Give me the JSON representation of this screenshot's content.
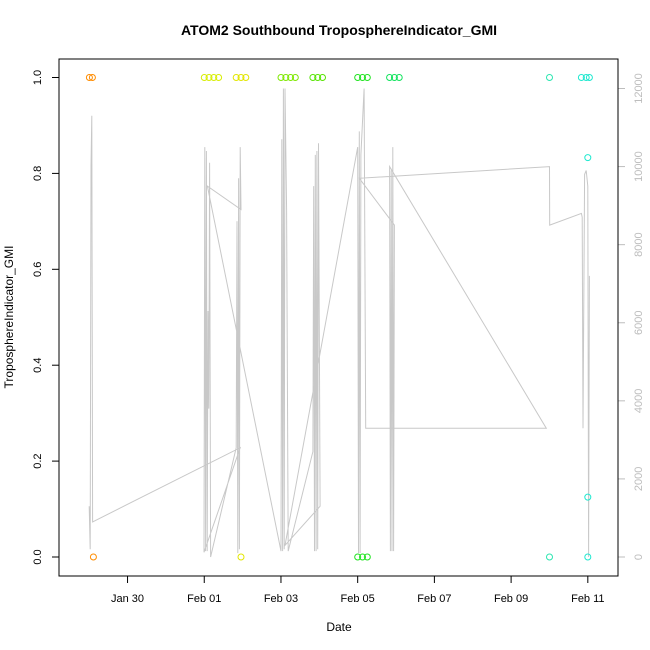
{
  "chart_data": {
    "type": "scatter",
    "title": "ATOM2 Southbound TroposphereIndicator_GMI",
    "xlabel": "Date",
    "ylabel": "TroposphereIndicator_GMI",
    "xlim": [
      "2016-01-28T12:00",
      "2016-02-11T12:00"
    ],
    "ylim": [
      0,
      1
    ],
    "y2lim": [
      0,
      12000
    ],
    "grid": false,
    "legend": "none",
    "x_ticks": [
      {
        "date": "2016-01-30",
        "label": "Jan 30"
      },
      {
        "date": "2016-02-01",
        "label": "Feb 01"
      },
      {
        "date": "2016-02-03",
        "label": "Feb 03"
      },
      {
        "date": "2016-02-05",
        "label": "Feb 05"
      },
      {
        "date": "2016-02-07",
        "label": "Feb 07"
      },
      {
        "date": "2016-02-09",
        "label": "Feb 09"
      },
      {
        "date": "2016-02-11",
        "label": "Feb 11"
      }
    ],
    "y_ticks": [
      {
        "value": 0.0,
        "label": "0.0"
      },
      {
        "value": 0.2,
        "label": "0.2"
      },
      {
        "value": 0.4,
        "label": "0.4"
      },
      {
        "value": 0.6,
        "label": "0.6"
      },
      {
        "value": 0.8,
        "label": "0.8"
      },
      {
        "value": 1.0,
        "label": "1.0"
      }
    ],
    "y2_ticks": [
      {
        "value": 0,
        "label": "0"
      },
      {
        "value": 2000,
        "label": "2000"
      },
      {
        "value": 4000,
        "label": "4000"
      },
      {
        "value": 6000,
        "label": "6000"
      },
      {
        "value": 8000,
        "label": "8000"
      },
      {
        "value": 10000,
        "label": "10000"
      },
      {
        "value": 12000,
        "label": "12000"
      }
    ],
    "points": [
      {
        "date": "2016-01-29T00:10",
        "y": 1,
        "color": "#ff8c00"
      },
      {
        "date": "2016-01-29T02:00",
        "y": 1,
        "color": "#ff8c00"
      },
      {
        "date": "2016-01-29T02:40",
        "y": 0,
        "color": "#ff8c00"
      },
      {
        "date": "2016-02-01T00:00",
        "y": 1,
        "color": "#d7ee00"
      },
      {
        "date": "2016-02-01T03:00",
        "y": 1,
        "color": "#d7ee00"
      },
      {
        "date": "2016-02-01T06:00",
        "y": 1,
        "color": "#d7ee00"
      },
      {
        "date": "2016-02-01T09:00",
        "y": 1,
        "color": "#d7ee00"
      },
      {
        "date": "2016-02-01T20:00",
        "y": 1,
        "color": "#e2e600"
      },
      {
        "date": "2016-02-01T23:00",
        "y": 1,
        "color": "#e2e600"
      },
      {
        "date": "2016-02-02T02:00",
        "y": 1,
        "color": "#e2e600"
      },
      {
        "date": "2016-02-01T23:00",
        "y": 0,
        "color": "#e2e600"
      },
      {
        "date": "2016-02-03T00:00",
        "y": 1,
        "color": "#7ee800"
      },
      {
        "date": "2016-02-03T03:00",
        "y": 1,
        "color": "#7ee800"
      },
      {
        "date": "2016-02-03T06:00",
        "y": 1,
        "color": "#7ee800"
      },
      {
        "date": "2016-02-03T09:00",
        "y": 1,
        "color": "#7ee800"
      },
      {
        "date": "2016-02-03T20:00",
        "y": 1,
        "color": "#55e400"
      },
      {
        "date": "2016-02-03T23:00",
        "y": 1,
        "color": "#55e400"
      },
      {
        "date": "2016-02-04T02:00",
        "y": 1,
        "color": "#55e400"
      },
      {
        "date": "2016-02-05T00:00",
        "y": 1,
        "color": "#1fe31f"
      },
      {
        "date": "2016-02-05T03:00",
        "y": 1,
        "color": "#1fe31f"
      },
      {
        "date": "2016-02-05T06:00",
        "y": 1,
        "color": "#1fe31f"
      },
      {
        "date": "2016-02-05T00:00",
        "y": 0,
        "color": "#1fe31f"
      },
      {
        "date": "2016-02-05T03:00",
        "y": 0,
        "color": "#1fe31f"
      },
      {
        "date": "2016-02-05T06:00",
        "y": 0,
        "color": "#1fe31f"
      },
      {
        "date": "2016-02-05T20:00",
        "y": 1,
        "color": "#10e35c"
      },
      {
        "date": "2016-02-05T23:00",
        "y": 1,
        "color": "#10e35c"
      },
      {
        "date": "2016-02-06T02:00",
        "y": 1,
        "color": "#10e35c"
      },
      {
        "date": "2016-02-10T00:00",
        "y": 1,
        "color": "#2ae6b0"
      },
      {
        "date": "2016-02-10T00:00",
        "y": 0,
        "color": "#2ae6b0"
      },
      {
        "date": "2016-02-10T20:00",
        "y": 1,
        "color": "#1ee8cf"
      },
      {
        "date": "2016-02-10T23:00",
        "y": 1,
        "color": "#1ee8cf"
      },
      {
        "date": "2016-02-11T01:00",
        "y": 1,
        "color": "#1ee8cf"
      },
      {
        "date": "2016-02-11T00:00",
        "y": 0.833,
        "color": "#1ee8cf"
      },
      {
        "date": "2016-02-11T00:00",
        "y": 0.125,
        "color": "#1ee8cf"
      },
      {
        "date": "2016-02-11T00:00",
        "y": 0,
        "color": "#1ee8cf"
      }
    ],
    "altitude_series": {
      "name": "",
      "color": "#c8c8c8",
      "points": [
        [
          "2016-01-29T00:00",
          1300
        ],
        [
          "2016-01-29T00:40",
          200
        ],
        [
          "2016-01-29T01:10",
          10000
        ],
        [
          "2016-01-29T01:40",
          11300
        ],
        [
          "2016-01-29T02:10",
          900
        ],
        [
          "2016-02-01T22:30",
          2800
        ],
        [
          "2016-01-31T23:50",
          120
        ],
        [
          "2016-02-01T00:20",
          10500
        ],
        [
          "2016-02-01T00:50",
          150
        ],
        [
          "2016-02-01T01:20",
          10400
        ],
        [
          "2016-02-01T01:50",
          150
        ],
        [
          "2016-02-01T02:20",
          6300
        ],
        [
          "2016-02-01T02:50",
          3800
        ],
        [
          "2016-02-01T03:20",
          10100
        ],
        [
          "2016-02-01T04:00",
          0
        ],
        [
          "2016-02-01T20:00",
          2800
        ],
        [
          "2016-02-01T20:30",
          8600
        ],
        [
          "2016-02-01T21:00",
          100
        ],
        [
          "2016-02-01T21:30",
          9700
        ],
        [
          "2016-02-01T22:00",
          200
        ],
        [
          "2016-02-01T22:30",
          10500
        ],
        [
          "2016-02-01T23:00",
          8900
        ],
        [
          "2016-02-01T02:00",
          9500
        ],
        [
          "2016-02-03T00:00",
          150
        ],
        [
          "2016-02-03T00:30",
          10700
        ],
        [
          "2016-02-03T01:00",
          150
        ],
        [
          "2016-02-03T01:30",
          12000
        ],
        [
          "2016-02-03T02:00",
          200
        ],
        [
          "2016-02-03T02:30",
          12000
        ],
        [
          "2016-02-03T03:30",
          8900
        ],
        [
          "2016-02-03T04:30",
          150
        ],
        [
          "2016-02-03T20:00",
          2700
        ],
        [
          "2016-02-03T20:30",
          9500
        ],
        [
          "2016-02-03T21:00",
          150
        ],
        [
          "2016-02-03T21:30",
          10300
        ],
        [
          "2016-02-03T22:00",
          150
        ],
        [
          "2016-02-03T22:30",
          10400
        ],
        [
          "2016-02-03T23:00",
          200
        ],
        [
          "2016-02-03T23:30",
          10600
        ],
        [
          "2016-02-04T00:30",
          1300
        ],
        [
          "2016-02-03T02:30",
          300
        ],
        [
          "2016-02-05T00:00",
          10500
        ],
        [
          "2016-02-05T00:30",
          100
        ],
        [
          "2016-02-05T01:00",
          10900
        ],
        [
          "2016-02-05T01:30",
          100
        ],
        [
          "2016-02-05T02:00",
          10300
        ],
        [
          "2016-02-05T04:00",
          12000
        ],
        [
          "2016-02-05T05:00",
          3300
        ],
        [
          "2016-02-09T22:00",
          3300
        ],
        [
          "2016-02-05T20:00",
          10000
        ],
        [
          "2016-02-05T20:30",
          150
        ],
        [
          "2016-02-05T21:00",
          9900
        ],
        [
          "2016-02-05T21:30",
          150
        ],
        [
          "2016-02-05T22:00",
          10500
        ],
        [
          "2016-02-05T22:30",
          150
        ],
        [
          "2016-02-05T23:00",
          8500
        ],
        [
          "2016-02-05T01:00",
          9700
        ],
        [
          "2016-02-10T00:00",
          10000
        ],
        [
          "2016-02-10T00:10",
          8500
        ],
        [
          "2016-02-10T20:00",
          8800
        ],
        [
          "2016-02-10T20:30",
          8700
        ],
        [
          "2016-02-10T21:00",
          3300
        ],
        [
          "2016-02-10T22:00",
          9800
        ],
        [
          "2016-02-10T23:00",
          9900
        ],
        [
          "2016-02-11T00:00",
          9500
        ],
        [
          "2016-02-11T00:30",
          0
        ],
        [
          "2016-02-11T01:00",
          7200
        ]
      ]
    }
  }
}
